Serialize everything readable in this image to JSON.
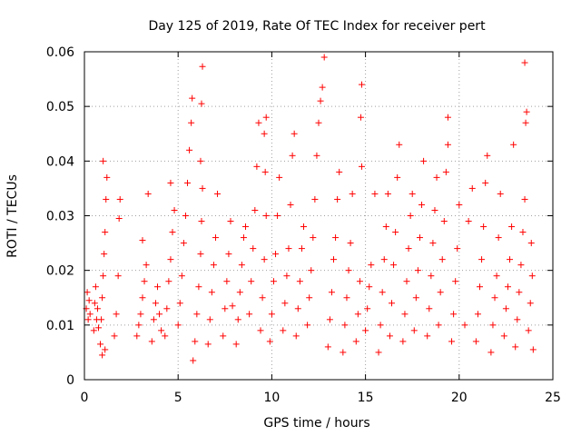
{
  "chart_data": {
    "type": "scatter",
    "title": "Day 125 of 2019, Rate Of TEC Index for receiver pert",
    "xlabel": "GPS time / hours",
    "ylabel": "ROTI / TECUs",
    "xlim": [
      0,
      25
    ],
    "ylim": [
      0,
      0.06
    ],
    "grid": true,
    "marker": "+",
    "color": "#ff0000",
    "xticks": [
      {
        "value": 0,
        "label": "0"
      },
      {
        "value": 5,
        "label": "5"
      },
      {
        "value": 10,
        "label": "10"
      },
      {
        "value": 15,
        "label": "15"
      },
      {
        "value": 20,
        "label": "20"
      },
      {
        "value": 25,
        "label": "25"
      }
    ],
    "yticks": [
      {
        "value": 0,
        "label": "0"
      },
      {
        "value": 0.01,
        "label": "0.01"
      },
      {
        "value": 0.02,
        "label": "0.02"
      },
      {
        "value": 0.03,
        "label": "0.03"
      },
      {
        "value": 0.04,
        "label": "0.04"
      },
      {
        "value": 0.05,
        "label": "0.05"
      },
      {
        "value": 0.06,
        "label": "0.06"
      }
    ],
    "series": [
      {
        "name": "ROTI",
        "points": [
          [
            0.1,
            0.013
          ],
          [
            0.15,
            0.016
          ],
          [
            0.2,
            0.011
          ],
          [
            0.25,
            0.0145
          ],
          [
            0.3,
            0.012
          ],
          [
            0.5,
            0.009
          ],
          [
            0.55,
            0.014
          ],
          [
            0.6,
            0.017
          ],
          [
            0.65,
            0.011
          ],
          [
            0.7,
            0.013
          ],
          [
            0.75,
            0.0095
          ],
          [
            0.85,
            0.0065
          ],
          [
            0.9,
            0.011
          ],
          [
            0.95,
            0.015
          ],
          [
            1.0,
            0.019
          ],
          [
            1.05,
            0.023
          ],
          [
            1.1,
            0.027
          ],
          [
            1.15,
            0.033
          ],
          [
            1.2,
            0.037
          ],
          [
            1.0,
            0.04
          ],
          [
            0.95,
            0.0045
          ],
          [
            1.1,
            0.0055
          ],
          [
            1.6,
            0.008
          ],
          [
            1.7,
            0.012
          ],
          [
            1.8,
            0.019
          ],
          [
            1.85,
            0.0295
          ],
          [
            1.9,
            0.033
          ],
          [
            2.8,
            0.008
          ],
          [
            2.9,
            0.01
          ],
          [
            3.0,
            0.012
          ],
          [
            3.1,
            0.015
          ],
          [
            3.2,
            0.018
          ],
          [
            3.3,
            0.021
          ],
          [
            3.1,
            0.0255
          ],
          [
            3.4,
            0.034
          ],
          [
            3.6,
            0.007
          ],
          [
            3.7,
            0.011
          ],
          [
            3.8,
            0.014
          ],
          [
            3.9,
            0.017
          ],
          [
            4.0,
            0.012
          ],
          [
            4.1,
            0.009
          ],
          [
            4.3,
            0.008
          ],
          [
            4.4,
            0.013
          ],
          [
            4.5,
            0.018
          ],
          [
            4.6,
            0.022
          ],
          [
            4.7,
            0.027
          ],
          [
            4.8,
            0.031
          ],
          [
            4.6,
            0.036
          ],
          [
            5.0,
            0.01
          ],
          [
            5.1,
            0.014
          ],
          [
            5.2,
            0.019
          ],
          [
            5.3,
            0.025
          ],
          [
            5.4,
            0.03
          ],
          [
            5.5,
            0.036
          ],
          [
            5.6,
            0.042
          ],
          [
            5.7,
            0.047
          ],
          [
            5.75,
            0.0515
          ],
          [
            5.8,
            0.0035
          ],
          [
            5.9,
            0.007
          ],
          [
            6.0,
            0.012
          ],
          [
            6.1,
            0.017
          ],
          [
            6.2,
            0.023
          ],
          [
            6.25,
            0.029
          ],
          [
            6.3,
            0.035
          ],
          [
            6.2,
            0.04
          ],
          [
            6.25,
            0.0505
          ],
          [
            6.3,
            0.0573
          ],
          [
            6.6,
            0.0065
          ],
          [
            6.7,
            0.011
          ],
          [
            6.8,
            0.016
          ],
          [
            6.9,
            0.021
          ],
          [
            7.0,
            0.026
          ],
          [
            7.1,
            0.034
          ],
          [
            7.4,
            0.008
          ],
          [
            7.5,
            0.013
          ],
          [
            7.6,
            0.018
          ],
          [
            7.7,
            0.023
          ],
          [
            7.8,
            0.029
          ],
          [
            7.9,
            0.0135
          ],
          [
            8.1,
            0.0065
          ],
          [
            8.2,
            0.011
          ],
          [
            8.3,
            0.016
          ],
          [
            8.4,
            0.021
          ],
          [
            8.5,
            0.026
          ],
          [
            8.6,
            0.028
          ],
          [
            8.8,
            0.012
          ],
          [
            8.9,
            0.018
          ],
          [
            9.0,
            0.024
          ],
          [
            9.1,
            0.031
          ],
          [
            9.2,
            0.039
          ],
          [
            9.3,
            0.047
          ],
          [
            9.4,
            0.009
          ],
          [
            9.5,
            0.015
          ],
          [
            9.6,
            0.022
          ],
          [
            9.7,
            0.03
          ],
          [
            9.65,
            0.038
          ],
          [
            9.6,
            0.045
          ],
          [
            9.7,
            0.048
          ],
          [
            9.9,
            0.007
          ],
          [
            10.0,
            0.012
          ],
          [
            10.1,
            0.018
          ],
          [
            10.2,
            0.023
          ],
          [
            10.3,
            0.03
          ],
          [
            10.4,
            0.037
          ],
          [
            10.6,
            0.009
          ],
          [
            10.7,
            0.014
          ],
          [
            10.8,
            0.019
          ],
          [
            10.9,
            0.024
          ],
          [
            11.0,
            0.032
          ],
          [
            11.1,
            0.041
          ],
          [
            11.2,
            0.045
          ],
          [
            11.3,
            0.008
          ],
          [
            11.4,
            0.013
          ],
          [
            11.5,
            0.018
          ],
          [
            11.6,
            0.024
          ],
          [
            11.7,
            0.028
          ],
          [
            11.9,
            0.01
          ],
          [
            12.0,
            0.015
          ],
          [
            12.1,
            0.02
          ],
          [
            12.2,
            0.026
          ],
          [
            12.3,
            0.033
          ],
          [
            12.4,
            0.041
          ],
          [
            12.5,
            0.047
          ],
          [
            12.6,
            0.051
          ],
          [
            12.7,
            0.0535
          ],
          [
            12.8,
            0.059
          ],
          [
            13.0,
            0.006
          ],
          [
            13.1,
            0.011
          ],
          [
            13.2,
            0.016
          ],
          [
            13.3,
            0.022
          ],
          [
            13.4,
            0.026
          ],
          [
            13.5,
            0.033
          ],
          [
            13.6,
            0.038
          ],
          [
            13.8,
            0.005
          ],
          [
            13.9,
            0.01
          ],
          [
            14.0,
            0.015
          ],
          [
            14.1,
            0.02
          ],
          [
            14.2,
            0.025
          ],
          [
            14.3,
            0.034
          ],
          [
            14.5,
            0.007
          ],
          [
            14.6,
            0.012
          ],
          [
            14.7,
            0.018
          ],
          [
            14.8,
            0.039
          ],
          [
            14.75,
            0.048
          ],
          [
            14.8,
            0.054
          ],
          [
            15.0,
            0.009
          ],
          [
            15.1,
            0.013
          ],
          [
            15.2,
            0.017
          ],
          [
            15.3,
            0.021
          ],
          [
            15.5,
            0.034
          ],
          [
            15.7,
            0.005
          ],
          [
            15.8,
            0.01
          ],
          [
            15.9,
            0.016
          ],
          [
            16.0,
            0.022
          ],
          [
            16.1,
            0.028
          ],
          [
            16.2,
            0.034
          ],
          [
            16.3,
            0.008
          ],
          [
            16.4,
            0.014
          ],
          [
            16.5,
            0.021
          ],
          [
            16.6,
            0.027
          ],
          [
            16.7,
            0.037
          ],
          [
            16.8,
            0.043
          ],
          [
            17.0,
            0.007
          ],
          [
            17.1,
            0.012
          ],
          [
            17.2,
            0.018
          ],
          [
            17.3,
            0.024
          ],
          [
            17.4,
            0.03
          ],
          [
            17.5,
            0.034
          ],
          [
            17.6,
            0.009
          ],
          [
            17.7,
            0.015
          ],
          [
            17.8,
            0.02
          ],
          [
            17.9,
            0.026
          ],
          [
            18.0,
            0.032
          ],
          [
            18.1,
            0.04
          ],
          [
            18.3,
            0.008
          ],
          [
            18.4,
            0.013
          ],
          [
            18.5,
            0.019
          ],
          [
            18.6,
            0.025
          ],
          [
            18.7,
            0.031
          ],
          [
            18.8,
            0.037
          ],
          [
            18.9,
            0.01
          ],
          [
            19.0,
            0.016
          ],
          [
            19.1,
            0.022
          ],
          [
            19.2,
            0.029
          ],
          [
            19.3,
            0.038
          ],
          [
            19.4,
            0.043
          ],
          [
            19.4,
            0.048
          ],
          [
            19.6,
            0.007
          ],
          [
            19.7,
            0.012
          ],
          [
            19.8,
            0.018
          ],
          [
            19.9,
            0.024
          ],
          [
            20.0,
            0.032
          ],
          [
            20.3,
            0.01
          ],
          [
            20.5,
            0.029
          ],
          [
            20.7,
            0.035
          ],
          [
            20.9,
            0.007
          ],
          [
            21.0,
            0.012
          ],
          [
            21.1,
            0.017
          ],
          [
            21.2,
            0.022
          ],
          [
            21.3,
            0.028
          ],
          [
            21.4,
            0.036
          ],
          [
            21.5,
            0.041
          ],
          [
            21.7,
            0.005
          ],
          [
            21.8,
            0.01
          ],
          [
            21.9,
            0.015
          ],
          [
            22.0,
            0.019
          ],
          [
            22.1,
            0.026
          ],
          [
            22.2,
            0.034
          ],
          [
            22.4,
            0.008
          ],
          [
            22.5,
            0.013
          ],
          [
            22.6,
            0.017
          ],
          [
            22.7,
            0.022
          ],
          [
            22.8,
            0.028
          ],
          [
            22.9,
            0.043
          ],
          [
            23.0,
            0.006
          ],
          [
            23.1,
            0.011
          ],
          [
            23.2,
            0.016
          ],
          [
            23.3,
            0.021
          ],
          [
            23.4,
            0.027
          ],
          [
            23.5,
            0.033
          ],
          [
            23.55,
            0.047
          ],
          [
            23.6,
            0.049
          ],
          [
            23.5,
            0.058
          ],
          [
            23.7,
            0.009
          ],
          [
            23.8,
            0.014
          ],
          [
            23.9,
            0.019
          ],
          [
            23.95,
            0.0055
          ],
          [
            23.85,
            0.025
          ]
        ]
      }
    ]
  }
}
